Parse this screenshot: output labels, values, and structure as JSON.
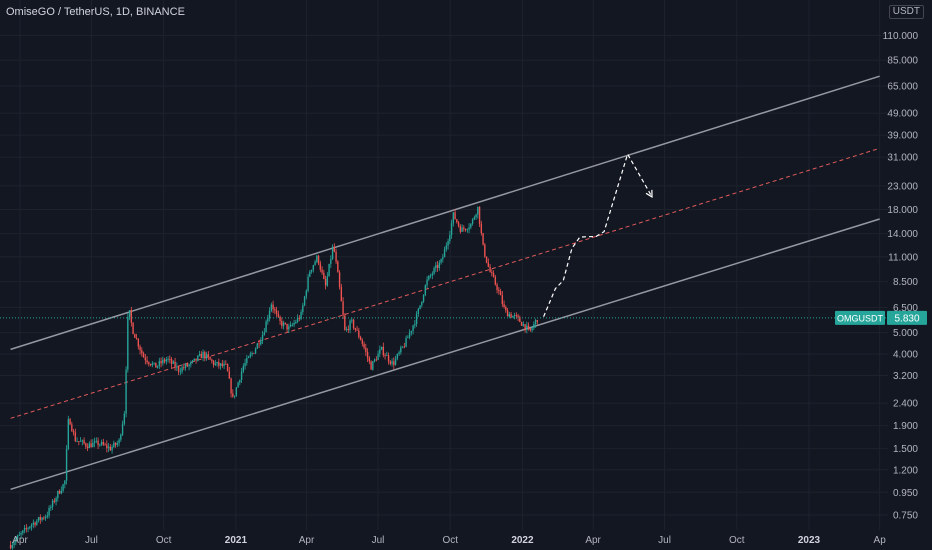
{
  "header": {
    "title": "OmiseGO / TetherUS, 1D, BINANCE",
    "unit": "USDT"
  },
  "colors": {
    "background": "#131722",
    "grid": "#1e222d",
    "up": "#26a69a",
    "down": "#ef5350",
    "channel": "#9598a1",
    "midline": "#e05a5a",
    "projection": "#ffffff",
    "last_price_line": "#26a69a"
  },
  "chart_data": {
    "type": "candlestick",
    "y_scale": "log",
    "y_ticks": [
      "110.000",
      "85.000",
      "65.000",
      "49.000",
      "39.000",
      "31.000",
      "23.000",
      "18.000",
      "14.000",
      "11.000",
      "8.500",
      "6.500",
      "5.000",
      "4.000",
      "3.200",
      "2.400",
      "1.900",
      "1.500",
      "1.200",
      "0.950",
      "0.750"
    ],
    "y_tick_values": [
      110,
      85,
      65,
      49,
      39,
      31,
      23,
      18,
      14,
      11,
      8.5,
      6.5,
      5.0,
      4.0,
      3.2,
      2.4,
      1.9,
      1.5,
      1.2,
      0.95,
      0.75
    ],
    "x_ticks": [
      {
        "label": "Apr",
        "date": "2020-04-01",
        "bold": false
      },
      {
        "label": "Jul",
        "date": "2020-07-01",
        "bold": false
      },
      {
        "label": "Oct",
        "date": "2020-10-01",
        "bold": false
      },
      {
        "label": "2021",
        "date": "2021-01-01",
        "bold": true
      },
      {
        "label": "Apr",
        "date": "2021-04-01",
        "bold": false
      },
      {
        "label": "Jul",
        "date": "2021-07-01",
        "bold": false
      },
      {
        "label": "Oct",
        "date": "2021-10-01",
        "bold": false
      },
      {
        "label": "2022",
        "date": "2022-01-01",
        "bold": true
      },
      {
        "label": "Apr",
        "date": "2022-04-01",
        "bold": false
      },
      {
        "label": "Jul",
        "date": "2022-07-01",
        "bold": false
      },
      {
        "label": "Oct",
        "date": "2022-10-01",
        "bold": false
      },
      {
        "label": "2023",
        "date": "2023-01-01",
        "bold": true
      },
      {
        "label": "Ap",
        "date": "2023-04-01",
        "bold": false
      }
    ],
    "price_path": [
      [
        "2020-03-20",
        0.55
      ],
      [
        "2020-04-15",
        0.68
      ],
      [
        "2020-05-05",
        0.75
      ],
      [
        "2020-05-20",
        0.95
      ],
      [
        "2020-05-28",
        1.05
      ],
      [
        "2020-06-02",
        2.1
      ],
      [
        "2020-06-10",
        1.65
      ],
      [
        "2020-06-25",
        1.55
      ],
      [
        "2020-07-10",
        1.58
      ],
      [
        "2020-07-25",
        1.5
      ],
      [
        "2020-08-05",
        1.6
      ],
      [
        "2020-08-12",
        2.2
      ],
      [
        "2020-08-17",
        6.6
      ],
      [
        "2020-08-22",
        5.2
      ],
      [
        "2020-09-05",
        3.9
      ],
      [
        "2020-09-20",
        3.5
      ],
      [
        "2020-10-05",
        3.8
      ],
      [
        "2020-10-20",
        3.4
      ],
      [
        "2020-11-05",
        3.6
      ],
      [
        "2020-11-20",
        4.0
      ],
      [
        "2020-12-05",
        3.6
      ],
      [
        "2020-12-20",
        3.5
      ],
      [
        "2020-12-28",
        2.5
      ],
      [
        "2021-01-10",
        3.5
      ],
      [
        "2021-01-25",
        4.2
      ],
      [
        "2021-02-05",
        5.0
      ],
      [
        "2021-02-15",
        6.8
      ],
      [
        "2021-02-25",
        5.6
      ],
      [
        "2021-03-10",
        5.2
      ],
      [
        "2021-03-25",
        6.0
      ],
      [
        "2021-04-05",
        9.5
      ],
      [
        "2021-04-15",
        11.0
      ],
      [
        "2021-04-25",
        8.0
      ],
      [
        "2021-05-05",
        12.5
      ],
      [
        "2021-05-12",
        8.5
      ],
      [
        "2021-05-20",
        5.0
      ],
      [
        "2021-05-28",
        5.6
      ],
      [
        "2021-06-10",
        4.6
      ],
      [
        "2021-06-22",
        3.5
      ],
      [
        "2021-07-05",
        4.2
      ],
      [
        "2021-07-20",
        3.6
      ],
      [
        "2021-08-05",
        4.5
      ],
      [
        "2021-08-20",
        6.0
      ],
      [
        "2021-09-01",
        8.5
      ],
      [
        "2021-09-10",
        9.5
      ],
      [
        "2021-09-20",
        10.5
      ],
      [
        "2021-10-01",
        14.5
      ],
      [
        "2021-10-05",
        17.0
      ],
      [
        "2021-10-15",
        14.5
      ],
      [
        "2021-10-28",
        15.5
      ],
      [
        "2021-11-05",
        18.5
      ],
      [
        "2021-11-12",
        12.0
      ],
      [
        "2021-11-20",
        9.5
      ],
      [
        "2021-12-01",
        7.8
      ],
      [
        "2021-12-10",
        6.2
      ],
      [
        "2021-12-25",
        5.8
      ],
      [
        "2022-01-05",
        5.3
      ],
      [
        "2022-01-10",
        5.0
      ],
      [
        "2022-01-20",
        5.8
      ]
    ],
    "last_price": {
      "label": "OMGUSDT",
      "value": "5.830",
      "numeric": 5.83
    },
    "drawings": {
      "channel_upper": [
        [
          "2020-03-20",
          4.2
        ],
        [
          "2023-04-01",
          72
        ]
      ],
      "channel_lower": [
        [
          "2020-03-20",
          0.98
        ],
        [
          "2023-04-01",
          16.3
        ]
      ],
      "channel_mid": [
        [
          "2020-03-20",
          2.05
        ],
        [
          "2023-04-01",
          34
        ]
      ],
      "projection": [
        [
          "2022-01-28",
          5.9
        ],
        [
          "2022-02-12",
          7.9
        ],
        [
          "2022-02-22",
          8.6
        ],
        [
          "2022-03-05",
          12.0
        ],
        [
          "2022-03-15",
          13.5
        ],
        [
          "2022-04-05",
          13.6
        ],
        [
          "2022-04-15",
          14.3
        ],
        [
          "2022-05-15",
          32.0
        ],
        [
          "2022-06-15",
          20.5
        ]
      ]
    }
  }
}
